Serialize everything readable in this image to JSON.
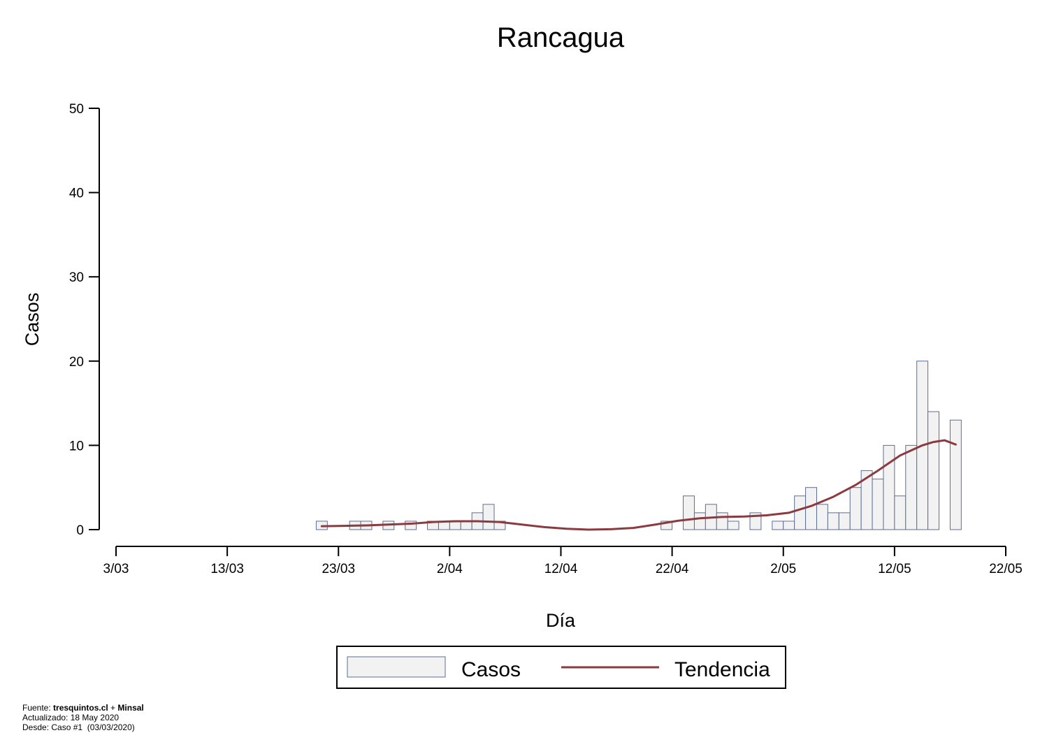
{
  "chart_data": {
    "type": "bar",
    "title": "Rancagua",
    "xlabel": "Día",
    "ylabel": "Casos",
    "ylim": [
      0,
      50
    ],
    "yticks": [
      0,
      10,
      20,
      30,
      40,
      50
    ],
    "xlim": [
      "2020-03-03",
      "2020-05-22"
    ],
    "xticks": [
      {
        "date": "2020-03-03",
        "label": "3/03"
      },
      {
        "date": "2020-03-13",
        "label": "13/03"
      },
      {
        "date": "2020-03-23",
        "label": "23/03"
      },
      {
        "date": "2020-04-02",
        "label": "2/04"
      },
      {
        "date": "2020-04-12",
        "label": "12/04"
      },
      {
        "date": "2020-04-22",
        "label": "22/04"
      },
      {
        "date": "2020-05-02",
        "label": "2/05"
      },
      {
        "date": "2020-05-12",
        "label": "12/05"
      },
      {
        "date": "2020-05-22",
        "label": "22/05"
      }
    ],
    "series": [
      {
        "name": "Casos",
        "color": "#f2f2f2",
        "edge_color": "#5b6e96",
        "points": [
          {
            "date": "2020-03-21",
            "value": 1
          },
          {
            "date": "2020-03-24",
            "value": 1
          },
          {
            "date": "2020-03-25",
            "value": 1
          },
          {
            "date": "2020-03-27",
            "value": 1
          },
          {
            "date": "2020-03-29",
            "value": 1
          },
          {
            "date": "2020-03-31",
            "value": 1
          },
          {
            "date": "2020-04-01",
            "value": 1
          },
          {
            "date": "2020-04-02",
            "value": 1
          },
          {
            "date": "2020-04-03",
            "value": 1
          },
          {
            "date": "2020-04-04",
            "value": 2
          },
          {
            "date": "2020-04-05",
            "value": 3
          },
          {
            "date": "2020-04-06",
            "value": 1
          },
          {
            "date": "2020-04-21",
            "value": 1
          },
          {
            "date": "2020-04-23",
            "value": 4
          },
          {
            "date": "2020-04-24",
            "value": 2
          },
          {
            "date": "2020-04-25",
            "value": 3
          },
          {
            "date": "2020-04-26",
            "value": 2
          },
          {
            "date": "2020-04-27",
            "value": 1
          },
          {
            "date": "2020-04-29",
            "value": 2
          },
          {
            "date": "2020-05-01",
            "value": 1
          },
          {
            "date": "2020-05-02",
            "value": 1
          },
          {
            "date": "2020-05-03",
            "value": 4
          },
          {
            "date": "2020-05-04",
            "value": 5
          },
          {
            "date": "2020-05-05",
            "value": 3
          },
          {
            "date": "2020-05-06",
            "value": 2
          },
          {
            "date": "2020-05-07",
            "value": 2
          },
          {
            "date": "2020-05-08",
            "value": 5
          },
          {
            "date": "2020-05-09",
            "value": 7
          },
          {
            "date": "2020-05-10",
            "value": 6
          },
          {
            "date": "2020-05-11",
            "value": 10
          },
          {
            "date": "2020-05-12",
            "value": 4
          },
          {
            "date": "2020-05-13",
            "value": 10
          },
          {
            "date": "2020-05-14",
            "value": 20
          },
          {
            "date": "2020-05-15",
            "value": 14
          },
          {
            "date": "2020-05-17",
            "value": 13
          }
        ]
      },
      {
        "name": "Tendencia",
        "type": "line",
        "color": "#8b3a3f",
        "points": [
          {
            "date": "2020-03-21",
            "value": 0.4
          },
          {
            "date": "2020-03-23",
            "value": 0.45
          },
          {
            "date": "2020-03-25",
            "value": 0.5
          },
          {
            "date": "2020-03-27",
            "value": 0.6
          },
          {
            "date": "2020-03-29",
            "value": 0.7
          },
          {
            "date": "2020-03-31",
            "value": 0.9
          },
          {
            "date": "2020-04-02",
            "value": 1.0
          },
          {
            "date": "2020-04-04",
            "value": 1.0
          },
          {
            "date": "2020-04-06",
            "value": 0.9
          },
          {
            "date": "2020-04-08",
            "value": 0.6
          },
          {
            "date": "2020-04-10",
            "value": 0.3
          },
          {
            "date": "2020-04-12",
            "value": 0.1
          },
          {
            "date": "2020-04-14",
            "value": 0.0
          },
          {
            "date": "2020-04-16",
            "value": 0.05
          },
          {
            "date": "2020-04-18",
            "value": 0.2
          },
          {
            "date": "2020-04-20",
            "value": 0.6
          },
          {
            "date": "2020-04-22",
            "value": 1.05
          },
          {
            "date": "2020-04-24",
            "value": 1.35
          },
          {
            "date": "2020-04-26",
            "value": 1.5
          },
          {
            "date": "2020-04-28",
            "value": 1.55
          },
          {
            "date": "2020-04-30",
            "value": 1.7
          },
          {
            "date": "2020-05-02",
            "value": 2.0
          },
          {
            "date": "2020-05-04",
            "value": 2.8
          },
          {
            "date": "2020-05-06",
            "value": 3.9
          },
          {
            "date": "2020-05-08",
            "value": 5.3
          },
          {
            "date": "2020-05-10",
            "value": 7.0
          },
          {
            "date": "2020-05-12",
            "value": 8.8
          },
          {
            "date": "2020-05-14",
            "value": 10.0
          },
          {
            "date": "2020-05-15",
            "value": 10.4
          },
          {
            "date": "2020-05-16",
            "value": 10.6
          },
          {
            "date": "2020-05-17",
            "value": 10.1
          }
        ]
      }
    ],
    "legend_position": "bottom-center",
    "grid": false
  },
  "footer": {
    "source_prefix": "Fuente: ",
    "source_site": "tresquintos.cl",
    "source_join": " + ",
    "source_org": "Minsal",
    "updated": "Actualizado: 18 May 2020",
    "since": "Desde: Caso #1  (03/03/2020)"
  }
}
